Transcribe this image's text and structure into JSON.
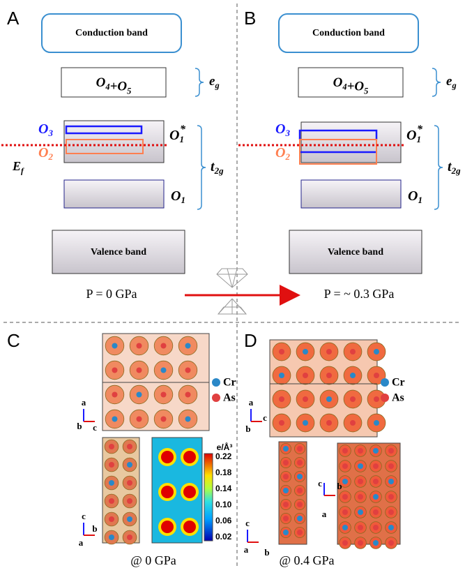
{
  "panels": {
    "A": {
      "label": "A",
      "conduction": "Conduction band",
      "eg_states": [
        {
          "main": "O",
          "sub": "4"
        },
        {
          "main": "+O",
          "sub": "5"
        }
      ],
      "eg": {
        "main": "e",
        "sub": "g"
      },
      "o3": {
        "main": "O",
        "sub": "3"
      },
      "o2": {
        "main": "O",
        "sub": "2"
      },
      "o1star": {
        "main": "O",
        "sub": "1",
        "sup": "*"
      },
      "ef": {
        "main": "E",
        "sub": "f"
      },
      "t2g": {
        "main": "t",
        "sub": "2g"
      },
      "o1": {
        "main": "O",
        "sub": "1"
      },
      "valence": "Valence band",
      "pressure": "P = 0 GPa"
    },
    "B": {
      "label": "B",
      "conduction": "Conduction band",
      "eg_states": [
        {
          "main": "O",
          "sub": "4"
        },
        {
          "main": "+O",
          "sub": "5"
        }
      ],
      "eg": {
        "main": "e",
        "sub": "g"
      },
      "o3": {
        "main": "O",
        "sub": "3"
      },
      "o2": {
        "main": "O",
        "sub": "2"
      },
      "o1star": {
        "main": "O",
        "sub": "1",
        "sup": "*"
      },
      "t2g": {
        "main": "t",
        "sub": "2g"
      },
      "o1": {
        "main": "O",
        "sub": "1"
      },
      "valence": "Valence band",
      "pressure": "P = ~ 0.3 GPa"
    },
    "C": {
      "label": "C",
      "legend": [
        "Cr",
        "As"
      ],
      "axes_top": [
        "a",
        "b",
        "c"
      ],
      "axes_bottom": [
        "c",
        "b",
        "a"
      ],
      "colorbar": {
        "unit": "e/Å³",
        "ticks": [
          "0.22",
          "0.18",
          "0.14",
          "0.10",
          "0.06",
          "0.02"
        ]
      },
      "caption": "@ 0 GPa"
    },
    "D": {
      "label": "D",
      "legend": [
        "Cr",
        "As"
      ],
      "axes_top": [
        "a",
        "c",
        "b"
      ],
      "axes_bottom_left": [
        "c",
        "a",
        "b"
      ],
      "axes_bottom_right": [
        "c",
        "b",
        "a"
      ],
      "caption": "@ 0.4 GPa"
    }
  }
}
